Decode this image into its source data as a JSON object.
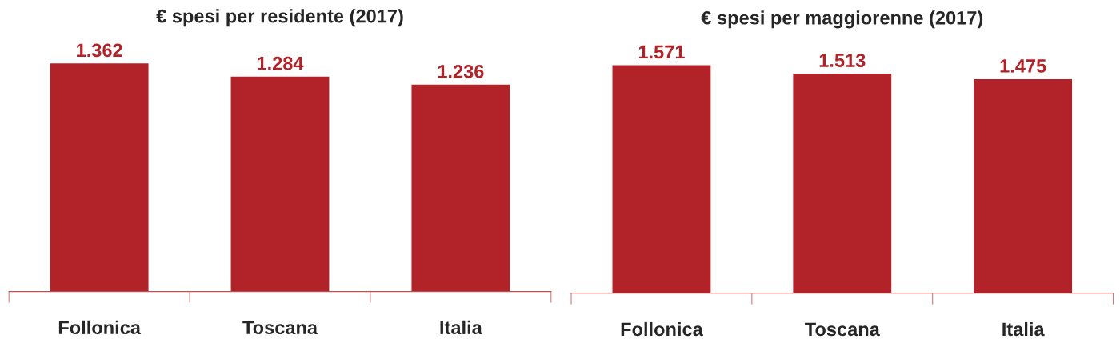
{
  "chart_data": [
    {
      "type": "bar",
      "title": "€ spesi per residente (2017)",
      "categories": [
        "Follonica",
        "Toscana",
        "Italia"
      ],
      "values": [
        1362,
        1284,
        1236
      ],
      "value_labels": [
        "1.362",
        "1.284",
        "1.236"
      ],
      "color": "#b22229",
      "grid": false,
      "legend": false
    },
    {
      "type": "bar",
      "title": "€ spesi per maggiorenne (2017)",
      "categories": [
        "Follonica",
        "Toscana",
        "Italia"
      ],
      "values": [
        1571,
        1513,
        1475
      ],
      "value_labels": [
        "1.571",
        "1.513",
        "1.475"
      ],
      "color": "#b22229",
      "grid": false,
      "legend": false
    }
  ]
}
